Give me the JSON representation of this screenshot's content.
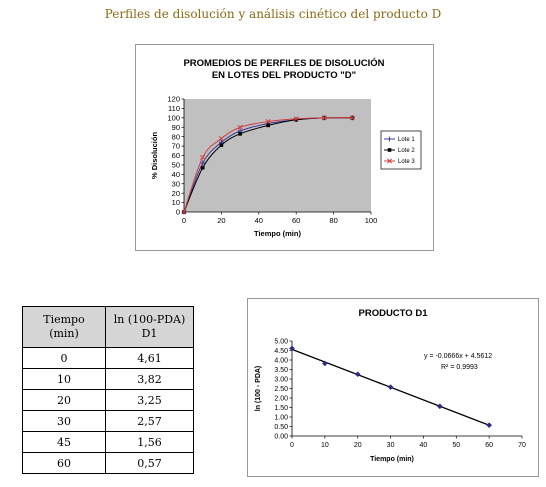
{
  "heading": "Perfiles de disolución y análisis cinético del producto D",
  "chart_data": [
    {
      "type": "line",
      "title": [
        "PROMEDIOS DE PERFILES DE DISOLUCIÓN",
        "EN LOTES DEL PRODUCTO \"D\""
      ],
      "xlabel": "Tiempo (min)",
      "ylabel": "% Disolución",
      "xlim": [
        0,
        100
      ],
      "ylim": [
        0,
        120
      ],
      "xticks": [
        0,
        20,
        40,
        60,
        80,
        100
      ],
      "yticks": [
        0,
        10,
        20,
        30,
        40,
        50,
        60,
        70,
        80,
        90,
        100,
        110,
        120
      ],
      "grid": false,
      "plot_background": "#c0c0c0",
      "legend_position": "right",
      "x": [
        0,
        10,
        20,
        30,
        45,
        60,
        75,
        90
      ],
      "series": [
        {
          "name": "Lote 1",
          "color": "#3a3aa0",
          "marker": "plus",
          "values": [
            0,
            52,
            74,
            86,
            94,
            98,
            100,
            100
          ]
        },
        {
          "name": "Lote 2",
          "color": "#000000",
          "marker": "square",
          "values": [
            0,
            47,
            71,
            83,
            92,
            98,
            100,
            100
          ]
        },
        {
          "name": "Lote 3",
          "color": "#d04040",
          "marker": "x",
          "values": [
            0,
            58,
            78,
            90,
            96,
            99,
            100,
            100
          ]
        }
      ]
    },
    {
      "type": "scatter",
      "title": "PRODUCTO D1",
      "xlabel": "Tiempo (min)",
      "ylabel": "ln (100 - PDA)",
      "xlim": [
        0,
        70
      ],
      "ylim": [
        0,
        5
      ],
      "xticks": [
        "0",
        "10",
        "20",
        "30",
        "40",
        "50",
        "60",
        "70"
      ],
      "yticks": [
        "0.00",
        "0.50",
        "1.00",
        "1.50",
        "2.00",
        "2.50",
        "3.00",
        "3.50",
        "4.00",
        "4.50",
        "5.00"
      ],
      "grid": false,
      "point_color": "#2a2a8a",
      "x": [
        0,
        10,
        20,
        30,
        45,
        60
      ],
      "values": [
        4.61,
        3.82,
        3.25,
        2.57,
        1.56,
        0.57
      ],
      "trendline": {
        "slope": -0.0666,
        "intercept": 4.5612
      },
      "equation": "y = -0.0666x + 4.5612",
      "r2": "R² = 0.9993"
    }
  ],
  "table": {
    "headers": [
      [
        "Tiempo",
        "(min)"
      ],
      [
        "ln (100-PDA)",
        "D1"
      ]
    ],
    "rows": [
      [
        "0",
        "4,61"
      ],
      [
        "10",
        "3,82"
      ],
      [
        "20",
        "3,25"
      ],
      [
        "30",
        "2,57"
      ],
      [
        "45",
        "1,56"
      ],
      [
        "60",
        "0,57"
      ]
    ]
  }
}
